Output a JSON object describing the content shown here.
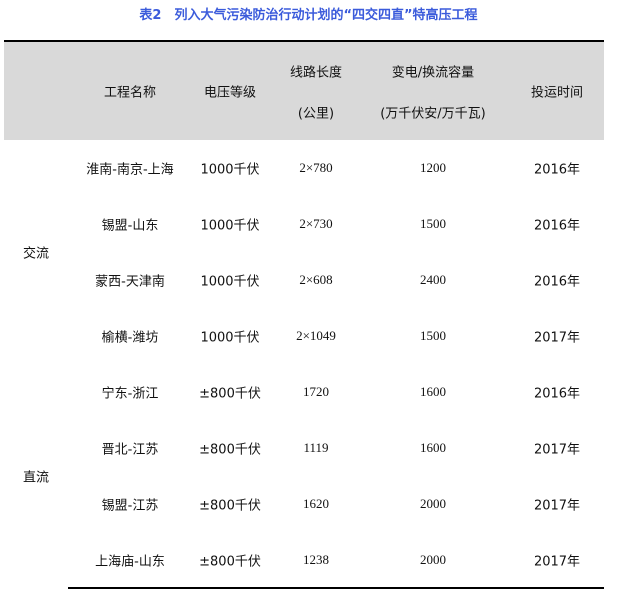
{
  "title": "表2　列入大气污染防治行动计划的“四交四直”特高压工程",
  "header": {
    "name": "工程名称",
    "voltage": "电压等级",
    "length_1": "线路长度",
    "length_2": "(公里)",
    "capacity_1": "变电/换流容量",
    "capacity_2": "(万千伏安/万千瓦)",
    "year": "投运时间"
  },
  "groups": [
    {
      "label": "交流"
    },
    {
      "label": "直流"
    }
  ],
  "rows": [
    {
      "name": "淮南-南京-上海",
      "voltage": "1000千伏",
      "length": "2×780",
      "capacity": "1200",
      "year": "2016年"
    },
    {
      "name": "锡盟-山东",
      "voltage": "1000千伏",
      "length": "2×730",
      "capacity": "1500",
      "year": "2016年"
    },
    {
      "name": "蒙西-天津南",
      "voltage": "1000千伏",
      "length": "2×608",
      "capacity": "2400",
      "year": "2016年"
    },
    {
      "name": "榆横-潍坊",
      "voltage": "1000千伏",
      "length": "2×1049",
      "capacity": "1500",
      "year": "2017年"
    },
    {
      "name": "宁东-浙江",
      "voltage": "±800千伏",
      "length": "1720",
      "capacity": "1600",
      "year": "2016年"
    },
    {
      "name": "晋北-江苏",
      "voltage": "±800千伏",
      "length": "1119",
      "capacity": "1600",
      "year": "2017年"
    },
    {
      "name": "锡盟-江苏",
      "voltage": "±800千伏",
      "length": "1620",
      "capacity": "2000",
      "year": "2017年"
    },
    {
      "name": "上海庙-山东",
      "voltage": "±800千伏",
      "length": "1238",
      "capacity": "2000",
      "year": "2017年"
    }
  ],
  "colors": {
    "title": "#3b5bdb",
    "header_bg": "#d9d9d9"
  }
}
